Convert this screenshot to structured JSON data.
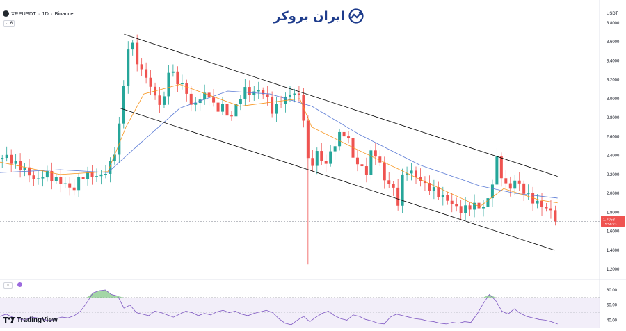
{
  "header": {
    "symbol": "XRPUSDT",
    "interval": "1D",
    "exchange": "Binance",
    "separator": "·",
    "indicator_count": "6"
  },
  "brand": {
    "logo_text": "ایران بروکر"
  },
  "footer": {
    "platform": "TradingView"
  },
  "price_axis": {
    "currency": "USDT",
    "ticks": [
      "3.8000",
      "3.6000",
      "3.4000",
      "3.2000",
      "3.0000",
      "2.8000",
      "2.6000",
      "2.4000",
      "2.2000",
      "2.0000",
      "1.8000",
      "1.6000",
      "1.4000",
      "1.2000"
    ],
    "last_price": "1.7053",
    "last_price_countdown": "15:58:23"
  },
  "rsi_axis": {
    "ticks": [
      "80.00",
      "60.00",
      "40.00"
    ]
  },
  "chart_data": {
    "type": "candlestick",
    "y_range": [
      1.12,
      3.88
    ],
    "colors": {
      "up": "#26a69a",
      "down": "#ef5350",
      "ma_fast": "#f7931a",
      "ma_slow": "#5b7bd5",
      "channel": "#000000",
      "rsi": "#7e57c2"
    },
    "channel_upper": [
      [
        0.207,
        3.68
      ],
      [
        0.93,
        2.18
      ]
    ],
    "channel_lower": [
      [
        0.2,
        2.9
      ],
      [
        0.925,
        1.4
      ]
    ],
    "close_path": [
      [
        0.0,
        2.36
      ],
      [
        0.01,
        2.4
      ],
      [
        0.02,
        2.33
      ],
      [
        0.035,
        2.28
      ],
      [
        0.05,
        2.2
      ],
      [
        0.06,
        2.12
      ],
      [
        0.075,
        2.22
      ],
      [
        0.09,
        2.15
      ],
      [
        0.11,
        2.1
      ],
      [
        0.12,
        2.02
      ],
      [
        0.135,
        2.18
      ],
      [
        0.15,
        2.2
      ],
      [
        0.165,
        2.17
      ],
      [
        0.18,
        2.25
      ],
      [
        0.19,
        2.4
      ],
      [
        0.2,
        2.75
      ],
      [
        0.21,
        3.4
      ],
      [
        0.215,
        3.55
      ],
      [
        0.225,
        3.6
      ],
      [
        0.232,
        3.2
      ],
      [
        0.24,
        3.35
      ],
      [
        0.25,
        3.1
      ],
      [
        0.26,
        3.05
      ],
      [
        0.27,
        2.85
      ],
      [
        0.28,
        3.3
      ],
      [
        0.29,
        3.25
      ],
      [
        0.3,
        3.15
      ],
      [
        0.31,
        3.1
      ],
      [
        0.32,
        2.9
      ],
      [
        0.335,
        3.02
      ],
      [
        0.35,
        3.05
      ],
      [
        0.36,
        2.85
      ],
      [
        0.37,
        2.95
      ],
      [
        0.38,
        2.8
      ],
      [
        0.39,
        2.85
      ],
      [
        0.4,
        3.02
      ],
      [
        0.41,
        3.1
      ],
      [
        0.42,
        3.05
      ],
      [
        0.435,
        3.1
      ],
      [
        0.45,
        2.95
      ],
      [
        0.455,
        2.85
      ],
      [
        0.465,
        2.95
      ],
      [
        0.475,
        3.0
      ],
      [
        0.485,
        3.05
      ],
      [
        0.495,
        3.08
      ],
      [
        0.505,
        2.9
      ],
      [
        0.512,
        2.35
      ],
      [
        0.52,
        2.3
      ],
      [
        0.53,
        2.45
      ],
      [
        0.54,
        2.28
      ],
      [
        0.55,
        2.4
      ],
      [
        0.56,
        2.55
      ],
      [
        0.57,
        2.65
      ],
      [
        0.58,
        2.6
      ],
      [
        0.59,
        2.35
      ],
      [
        0.6,
        2.3
      ],
      [
        0.61,
        2.2
      ],
      [
        0.62,
        2.45
      ],
      [
        0.63,
        2.4
      ],
      [
        0.64,
        2.15
      ],
      [
        0.65,
        2.1
      ],
      [
        0.66,
        2.0
      ],
      [
        0.665,
        1.87
      ],
      [
        0.672,
        2.2
      ],
      [
        0.68,
        2.25
      ],
      [
        0.69,
        2.2
      ],
      [
        0.7,
        2.15
      ],
      [
        0.71,
        2.08
      ],
      [
        0.72,
        2.05
      ],
      [
        0.73,
        2.0
      ],
      [
        0.74,
        1.95
      ],
      [
        0.75,
        1.92
      ],
      [
        0.76,
        1.85
      ],
      [
        0.77,
        1.82
      ],
      [
        0.78,
        1.85
      ],
      [
        0.79,
        1.88
      ],
      [
        0.8,
        1.85
      ],
      [
        0.81,
        1.87
      ],
      [
        0.815,
        1.95
      ],
      [
        0.82,
        2.05
      ],
      [
        0.826,
        2.4
      ],
      [
        0.832,
        2.3
      ],
      [
        0.84,
        2.1
      ],
      [
        0.85,
        2.05
      ],
      [
        0.86,
        2.15
      ],
      [
        0.87,
        2.05
      ],
      [
        0.88,
        1.98
      ],
      [
        0.89,
        1.92
      ],
      [
        0.9,
        1.88
      ],
      [
        0.91,
        1.85
      ],
      [
        0.92,
        1.8
      ],
      [
        0.928,
        1.71
      ]
    ],
    "wick_extreme": {
      "x": 0.512,
      "low": 1.25
    },
    "ma_fast": [
      [
        0,
        2.33
      ],
      [
        0.1,
        2.2
      ],
      [
        0.18,
        2.23
      ],
      [
        0.21,
        2.7
      ],
      [
        0.24,
        3.05
      ],
      [
        0.3,
        3.15
      ],
      [
        0.4,
        2.92
      ],
      [
        0.5,
        3.0
      ],
      [
        0.52,
        2.7
      ],
      [
        0.6,
        2.45
      ],
      [
        0.7,
        2.15
      ],
      [
        0.8,
        1.86
      ],
      [
        0.84,
        2.05
      ],
      [
        0.9,
        1.93
      ],
      [
        0.93,
        1.9
      ]
    ],
    "ma_slow": [
      [
        0,
        2.22
      ],
      [
        0.1,
        2.25
      ],
      [
        0.18,
        2.22
      ],
      [
        0.22,
        2.45
      ],
      [
        0.3,
        2.9
      ],
      [
        0.38,
        3.08
      ],
      [
        0.45,
        3.05
      ],
      [
        0.52,
        2.92
      ],
      [
        0.6,
        2.62
      ],
      [
        0.7,
        2.3
      ],
      [
        0.8,
        2.08
      ],
      [
        0.86,
        2.0
      ],
      [
        0.93,
        1.95
      ]
    ],
    "rsi": {
      "y_range": [
        33,
        92
      ],
      "overbought": 70,
      "oversold": 30,
      "values": [
        45,
        48,
        44,
        42,
        40,
        44,
        43,
        41,
        39,
        42,
        44,
        43,
        46,
        52,
        63,
        76,
        79,
        80,
        74,
        72,
        56,
        60,
        50,
        48,
        46,
        52,
        50,
        47,
        44,
        48,
        52,
        50,
        46,
        49,
        47,
        51,
        53,
        50,
        52,
        48,
        46,
        49,
        51,
        53,
        50,
        42,
        36,
        34,
        40,
        45,
        38,
        44,
        49,
        52,
        46,
        42,
        40,
        47,
        45,
        41,
        39,
        36,
        35,
        44,
        48,
        46,
        44,
        42,
        41,
        39,
        38,
        36,
        35,
        37,
        36,
        38,
        37,
        48,
        62,
        74,
        66,
        52,
        48,
        55,
        49,
        45,
        43,
        41,
        40,
        38,
        35
      ]
    }
  }
}
